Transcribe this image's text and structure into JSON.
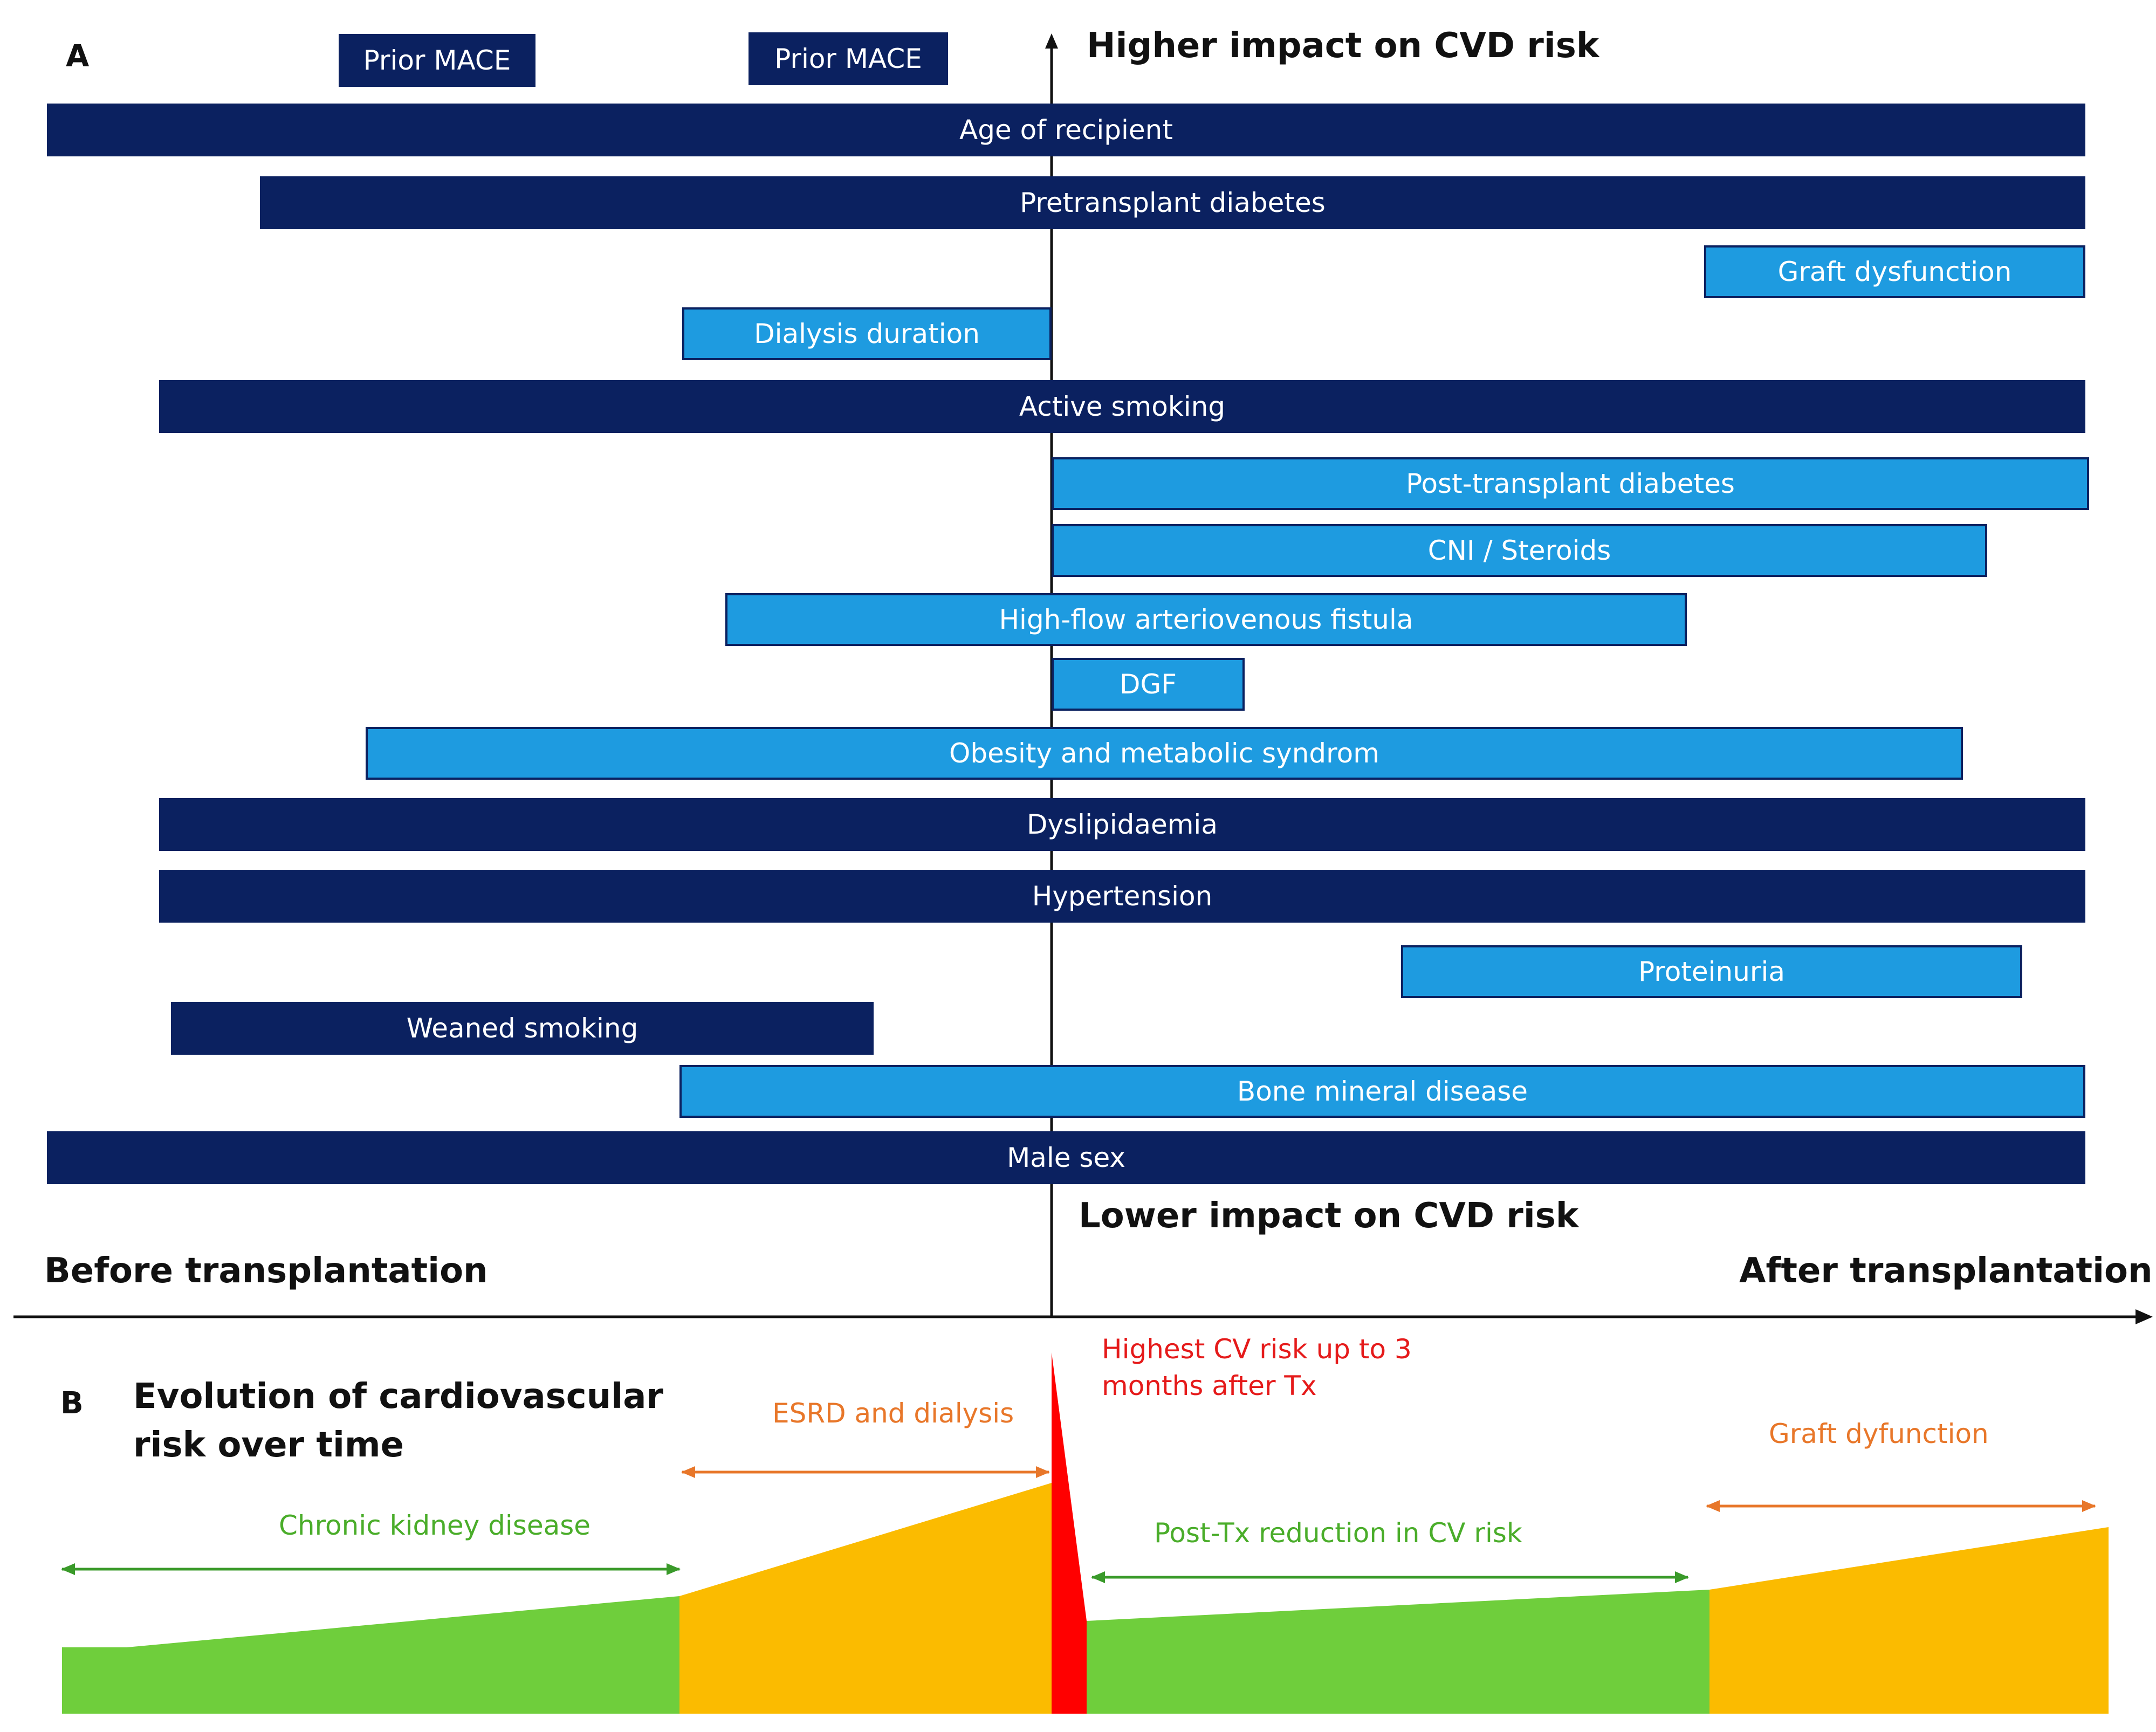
{
  "panel_a": {
    "label": "A",
    "top_axis_label": "Higher impact on CVD risk",
    "bottom_axis_label": "Lower impact on CVD risk",
    "before_label": "Before transplantation",
    "after_label": "After transplantation",
    "bars": [
      {
        "id": "prior-mace-1",
        "label": "Prior MACE",
        "style": "dark"
      },
      {
        "id": "prior-mace-2",
        "label": "Prior MACE",
        "style": "dark"
      },
      {
        "id": "age-of-recipient",
        "label": "Age of recipient",
        "style": "dark"
      },
      {
        "id": "pretransplant-diabetes",
        "label": "Pretransplant diabetes",
        "style": "dark"
      },
      {
        "id": "graft-dysfunction",
        "label": "Graft dysfunction",
        "style": "light"
      },
      {
        "id": "dialysis-duration",
        "label": "Dialysis duration",
        "style": "light"
      },
      {
        "id": "active-smoking",
        "label": "Active smoking",
        "style": "dark"
      },
      {
        "id": "post-transplant-diabetes",
        "label": "Post-transplant diabetes",
        "style": "light"
      },
      {
        "id": "cni-steroids",
        "label": "CNI / Steroids",
        "style": "light"
      },
      {
        "id": "high-flow-av-fistula",
        "label": "High-flow arteriovenous fistula",
        "style": "light"
      },
      {
        "id": "dgf",
        "label": "DGF",
        "style": "light"
      },
      {
        "id": "obesity-metabolic",
        "label": "Obesity and metabolic syndrom",
        "style": "light"
      },
      {
        "id": "dyslipidaemia",
        "label": "Dyslipidaemia",
        "style": "dark"
      },
      {
        "id": "hypertension",
        "label": "Hypertension",
        "style": "dark"
      },
      {
        "id": "proteinuria",
        "label": "Proteinuria",
        "style": "light"
      },
      {
        "id": "weaned-smoking",
        "label": "Weaned smoking",
        "style": "dark"
      },
      {
        "id": "bone-mineral-disease",
        "label": "Bone mineral disease",
        "style": "light"
      },
      {
        "id": "male-sex",
        "label": "Male sex",
        "style": "dark"
      }
    ]
  },
  "panel_b": {
    "label": "B",
    "title_line1": "Evolution of cardiovascular",
    "title_line2": "risk over time",
    "esrd_label": "ESRD and dialysis",
    "ckd_label": "Chronic kidney disease",
    "highest_risk_line1": "Highest CV risk  up to 3",
    "highest_risk_line2": "months after Tx",
    "post_tx_label": "Post-Tx reduction in CV risk",
    "graft_label": "Graft dyfunction"
  },
  "colors": {
    "dark_bar": "#0b2160",
    "light_bar": "#1e9be0",
    "green": "#6fce3c",
    "orange": "#fbbb00",
    "red": "#ff0000",
    "orange_text": "#e8772a",
    "green_text": "#4aad2a",
    "red_text": "#e51a1a"
  }
}
